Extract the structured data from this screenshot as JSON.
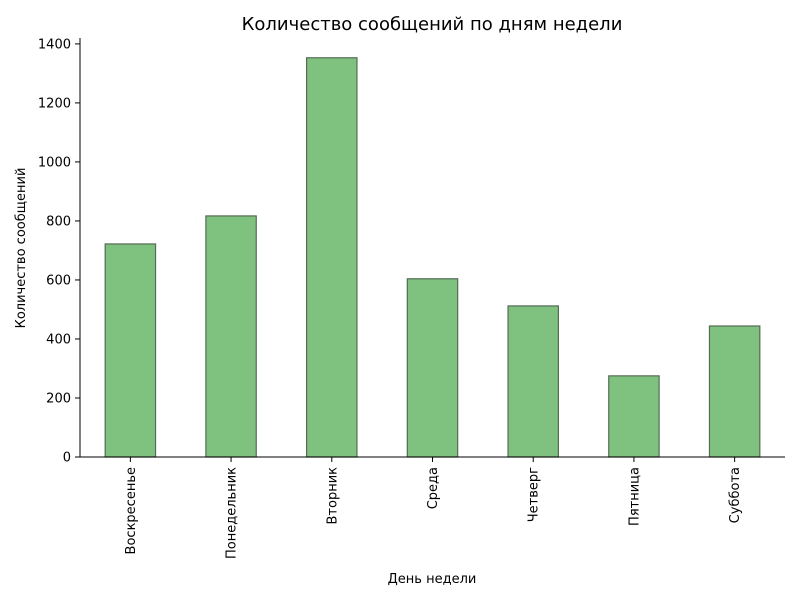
{
  "chart_data": {
    "type": "bar",
    "title": "Количество сообщений по дням недели",
    "xlabel": "День недели",
    "ylabel": "Количество сообщений",
    "categories": [
      "Воскресенье",
      "Понедельник",
      "Вторник",
      "Среда",
      "Четверг",
      "Пятница",
      "Суббота"
    ],
    "values": [
      722,
      817,
      1353,
      604,
      512,
      275,
      444
    ],
    "ylim": [
      0,
      1420
    ],
    "yticks": [
      0,
      200,
      400,
      600,
      800,
      1000,
      1200,
      1400
    ],
    "grid": false,
    "bar_color": "#7fc17f",
    "bar_edge_color": "#556b55"
  }
}
